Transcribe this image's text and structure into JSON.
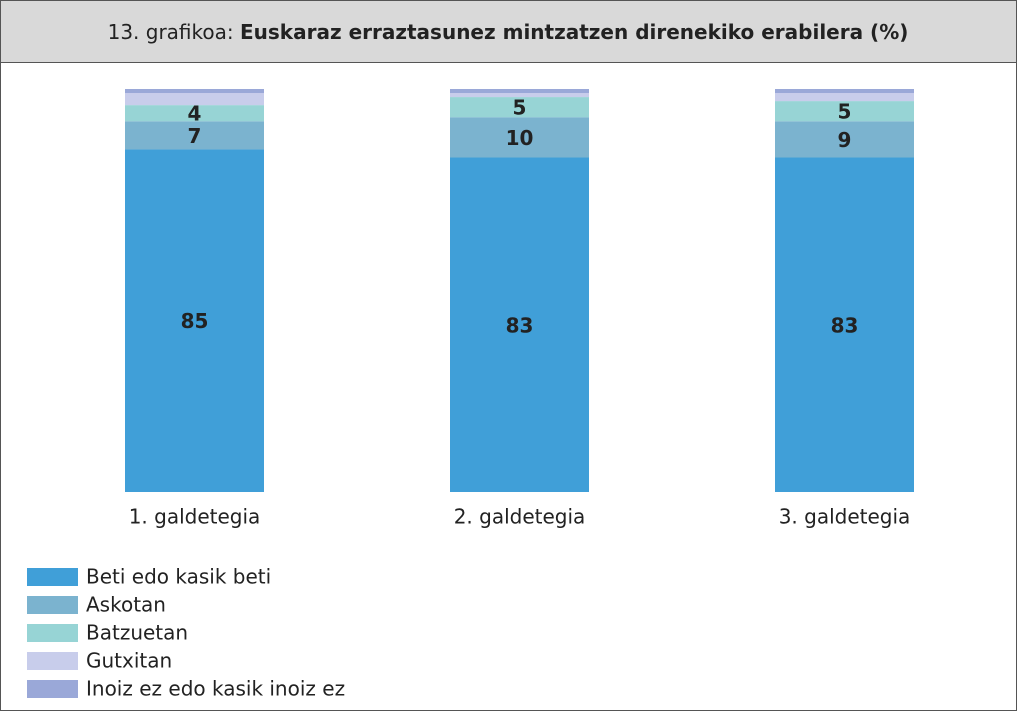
{
  "chart_data": {
    "type": "stacked_bar",
    "figure_label": "13. grafikoa:",
    "title": "Euskaraz erraztasunez mintzatzen direnekiko erabilera (%)",
    "categories": [
      "1. galdetegia",
      "2. galdetegia",
      "3. galdetegia"
    ],
    "ylim": [
      0,
      100
    ],
    "series": [
      {
        "name": "Beti edo kasik beti",
        "color": "#409fd8",
        "values": [
          85,
          83,
          83
        ],
        "show_labels": true
      },
      {
        "name": "Askotan",
        "color": "#7bb3cf",
        "values": [
          7,
          10,
          9
        ],
        "show_labels": true
      },
      {
        "name": "Batzuetan",
        "color": "#97d4d5",
        "values": [
          4,
          5,
          5
        ],
        "show_labels": true
      },
      {
        "name": "Gutxitan",
        "color": "#c8cdeb",
        "values": [
          3,
          1,
          2
        ],
        "show_labels": false
      },
      {
        "name": "Inoiz ez edo kasik inoiz ez",
        "color": "#9aa8d8",
        "values": [
          1,
          1,
          1
        ],
        "show_labels": false
      }
    ],
    "legend": "bottom-left"
  }
}
